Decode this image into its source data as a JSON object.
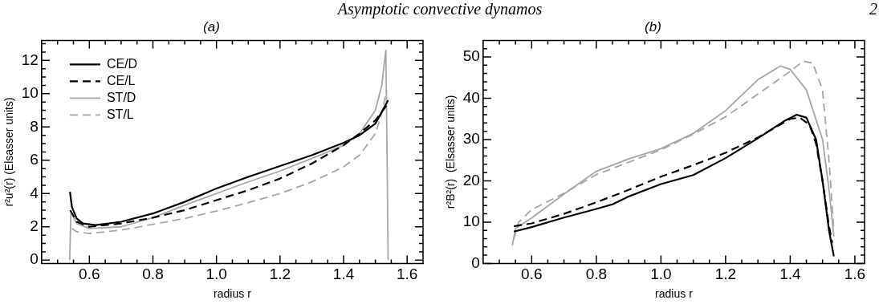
{
  "chart_data": [
    {
      "type": "line",
      "title": "(a)",
      "xlabel": "radius r",
      "ylabel": "r²u²(r) (Elsasser units)",
      "annotations": [
        "Asymptotic convective dynamos"
      ],
      "grid": false,
      "legend": "top left",
      "marker": "none",
      "xlim": [
        0.45,
        1.65
      ],
      "ylim": [
        -0.2,
        13.2
      ],
      "xticks": [
        {
          "value": 0.5,
          "label": null
        },
        {
          "value": 0.55,
          "label": null
        },
        0.6,
        {
          "value": 0.65,
          "label": null
        },
        {
          "value": 0.7,
          "label": null
        },
        {
          "value": 0.75,
          "label": null
        },
        0.8,
        {
          "value": 0.85,
          "label": null
        },
        {
          "value": 0.9,
          "label": null
        },
        {
          "value": 0.95,
          "label": null
        },
        {
          "value": 1,
          "label": "1.0"
        },
        {
          "value": 1.05,
          "label": null
        },
        {
          "value": 1.1,
          "label": null
        },
        {
          "value": 1.15,
          "label": null
        },
        1.2,
        {
          "value": 1.25,
          "label": null
        },
        {
          "value": 1.3,
          "label": null
        },
        {
          "value": 1.35,
          "label": null
        },
        1.4,
        {
          "value": 1.45,
          "label": null
        },
        {
          "value": 1.5,
          "label": null
        },
        {
          "value": 1.55,
          "label": null
        },
        1.6
      ],
      "yticks": [
        0,
        {
          "value": 0.5,
          "label": null
        },
        {
          "value": 1,
          "label": null
        },
        {
          "value": 1.5,
          "label": null
        },
        2,
        {
          "value": 2.5,
          "label": null
        },
        {
          "value": 3,
          "label": null
        },
        {
          "value": 3.5,
          "label": null
        },
        4,
        {
          "value": 4.5,
          "label": null
        },
        {
          "value": 5,
          "label": null
        },
        {
          "value": 5.5,
          "label": null
        },
        6,
        {
          "value": 6.5,
          "label": null
        },
        {
          "value": 7,
          "label": null
        },
        {
          "value": 7.5,
          "label": null
        },
        8,
        {
          "value": 8.5,
          "label": null
        },
        {
          "value": 9,
          "label": null
        },
        {
          "value": 9.5,
          "label": null
        },
        10,
        {
          "value": 10.5,
          "label": null
        },
        {
          "value": 11,
          "label": null
        },
        {
          "value": 11.5,
          "label": null
        },
        12,
        {
          "value": 12.5,
          "label": null
        },
        {
          "value": 13,
          "label": null
        }
      ],
      "series": [
        {
          "name": "CE/D",
          "color": "#000000",
          "line_style": "solid",
          "x": [
            0.539,
            0.545,
            0.56,
            0.58,
            0.62,
            0.7,
            0.8,
            0.9,
            1.0,
            1.1,
            1.2,
            1.3,
            1.4,
            1.45,
            1.5,
            1.54
          ],
          "values": [
            4.1,
            3.2,
            2.5,
            2.2,
            2.1,
            2.3,
            2.8,
            3.5,
            4.3,
            5.0,
            5.65,
            6.3,
            7.05,
            7.5,
            8.2,
            9.6
          ]
        },
        {
          "name": "CE/L",
          "color": "#000000",
          "line_style": "dashed",
          "x": [
            0.54,
            0.56,
            0.6,
            0.7,
            0.8,
            0.9,
            1.0,
            1.1,
            1.2,
            1.3,
            1.4,
            1.45,
            1.5,
            1.54
          ],
          "values": [
            3.0,
            2.3,
            2.0,
            2.2,
            2.55,
            3.0,
            3.6,
            4.2,
            4.9,
            5.8,
            6.9,
            7.6,
            8.4,
            9.4
          ]
        },
        {
          "name": "ST/D",
          "color": "#a6a6a6",
          "line_style": "solid",
          "x": [
            0.538,
            0.542,
            0.56,
            0.6,
            0.7,
            0.8,
            0.9,
            1.0,
            1.1,
            1.2,
            1.3,
            1.4,
            1.45,
            1.5,
            1.52,
            1.533,
            1.537,
            1.54
          ],
          "values": [
            0,
            2.9,
            2.2,
            1.9,
            2.0,
            2.55,
            3.3,
            4.0,
            4.7,
            5.35,
            6.1,
            6.9,
            7.6,
            9.0,
            10.5,
            12.6,
            6,
            0
          ]
        },
        {
          "name": "ST/L",
          "color": "#a6a6a6",
          "line_style": "dashed",
          "x": [
            0.545,
            0.56,
            0.6,
            0.7,
            0.8,
            0.9,
            1.0,
            1.1,
            1.2,
            1.3,
            1.4,
            1.45,
            1.5,
            1.52,
            1.535
          ],
          "values": [
            1.9,
            1.7,
            1.6,
            1.8,
            2.15,
            2.5,
            2.95,
            3.45,
            4.0,
            4.7,
            5.6,
            6.3,
            7.6,
            8.8,
            10.2
          ]
        }
      ]
    },
    {
      "type": "line",
      "title": "(b)",
      "xlabel": "radius r",
      "ylabel": "r²B²(r)  (Elsasser units)",
      "annotations": [
        "2"
      ],
      "grid": false,
      "marker": "none",
      "xlim": [
        0.45,
        1.63
      ],
      "ylim": [
        0,
        54
      ],
      "xticks": [
        {
          "value": 0.5,
          "label": null
        },
        {
          "value": 0.55,
          "label": null
        },
        0.6,
        {
          "value": 0.65,
          "label": null
        },
        {
          "value": 0.7,
          "label": null
        },
        {
          "value": 0.75,
          "label": null
        },
        0.8,
        {
          "value": 0.85,
          "label": null
        },
        {
          "value": 0.9,
          "label": null
        },
        {
          "value": 0.95,
          "label": null
        },
        {
          "value": 1,
          "label": "1.0"
        },
        {
          "value": 1.05,
          "label": null
        },
        {
          "value": 1.1,
          "label": null
        },
        {
          "value": 1.15,
          "label": null
        },
        1.2,
        {
          "value": 1.25,
          "label": null
        },
        {
          "value": 1.3,
          "label": null
        },
        {
          "value": 1.35,
          "label": null
        },
        1.4,
        {
          "value": 1.45,
          "label": null
        },
        {
          "value": 1.5,
          "label": null
        },
        {
          "value": 1.55,
          "label": null
        },
        1.6
      ],
      "yticks": [
        0,
        {
          "value": 2,
          "label": null
        },
        {
          "value": 4,
          "label": null
        },
        {
          "value": 6,
          "label": null
        },
        {
          "value": 8,
          "label": null
        },
        10,
        {
          "value": 12,
          "label": null
        },
        {
          "value": 14,
          "label": null
        },
        {
          "value": 16,
          "label": null
        },
        {
          "value": 18,
          "label": null
        },
        20,
        {
          "value": 22,
          "label": null
        },
        {
          "value": 24,
          "label": null
        },
        {
          "value": 26,
          "label": null
        },
        {
          "value": 28,
          "label": null
        },
        30,
        {
          "value": 32,
          "label": null
        },
        {
          "value": 34,
          "label": null
        },
        {
          "value": 36,
          "label": null
        },
        {
          "value": 38,
          "label": null
        },
        40,
        {
          "value": 42,
          "label": null
        },
        {
          "value": 44,
          "label": null
        },
        {
          "value": 46,
          "label": null
        },
        {
          "value": 48,
          "label": null
        },
        50,
        {
          "value": 52,
          "label": null
        }
      ],
      "series": [
        {
          "color": "#000000",
          "line_style": "solid",
          "x": [
            0.545,
            0.6,
            0.7,
            0.8,
            0.85,
            0.9,
            1.0,
            1.1,
            1.2,
            1.3,
            1.38,
            1.42,
            1.45,
            1.48,
            1.5,
            1.52,
            1.535
          ],
          "values": [
            7.7,
            8.8,
            11.1,
            13.2,
            14.3,
            16.2,
            19.2,
            21.4,
            25.5,
            30.3,
            34.4,
            36,
            35.3,
            30,
            20,
            8,
            1.7
          ]
        },
        {
          "color": "#000000",
          "line_style": "dashed",
          "x": [
            0.545,
            0.6,
            0.7,
            0.8,
            0.9,
            1.0,
            1.1,
            1.2,
            1.3,
            1.4,
            1.43,
            1.46,
            1.48,
            1.5,
            1.52,
            1.53
          ],
          "values": [
            9.0,
            9.7,
            12.0,
            14.8,
            17.8,
            21.0,
            23.8,
            26.8,
            30.5,
            35.0,
            35.3,
            33.5,
            29,
            20,
            9,
            5
          ]
        },
        {
          "color": "#a6a6a6",
          "line_style": "solid",
          "x": [
            0.54,
            0.55,
            0.6,
            0.7,
            0.8,
            0.9,
            1.0,
            1.1,
            1.2,
            1.3,
            1.37,
            1.4,
            1.45,
            1.5,
            1.52,
            1.535
          ],
          "values": [
            4.3,
            8.5,
            11,
            16.8,
            22.3,
            25.3,
            27.8,
            31.5,
            37,
            44.5,
            47.8,
            47,
            42,
            30,
            18,
            6.5
          ]
        },
        {
          "color": "#a6a6a6",
          "line_style": "dashed",
          "x": [
            0.545,
            0.56,
            0.6,
            0.7,
            0.8,
            0.9,
            1.0,
            1.1,
            1.2,
            1.3,
            1.4,
            1.44,
            1.47,
            1.5,
            1.52,
            1.535
          ],
          "values": [
            6,
            10,
            13,
            17,
            21.5,
            24.5,
            27.5,
            31.3,
            35.5,
            41,
            46.5,
            49,
            48.5,
            42,
            25,
            8
          ]
        }
      ]
    }
  ]
}
